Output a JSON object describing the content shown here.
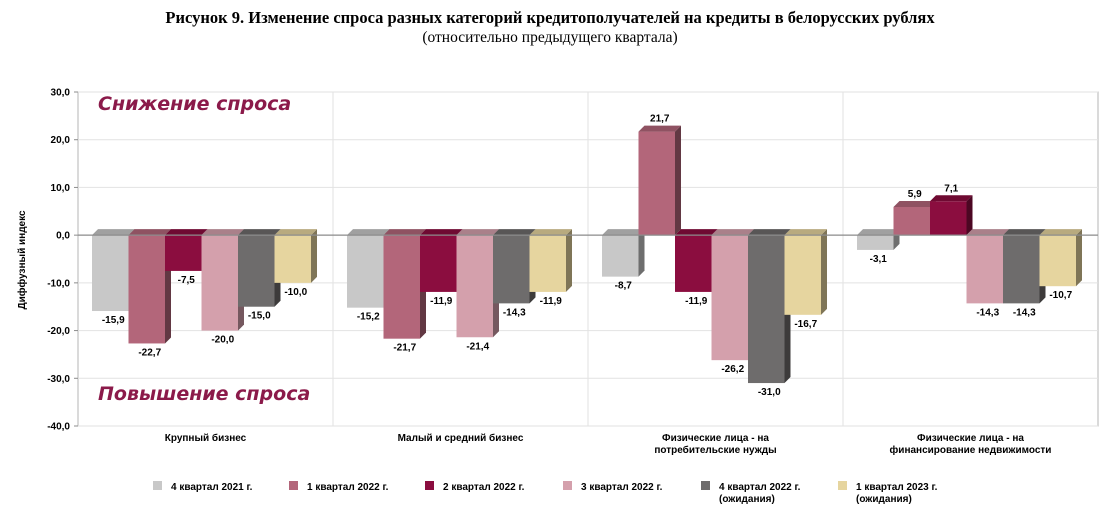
{
  "title": "Рисунок 9. Изменение спроса разных категорий кредитополучателей на кредиты в белорусских рублях",
  "subtitle": "(относительно предыдущего квартала)",
  "chart_data": {
    "type": "bar",
    "ylabel": "Диффузный индекс",
    "ylim": [
      -40,
      30
    ],
    "yticks": [
      "30,0",
      "20,0",
      "10,0",
      "0,0",
      "-10,0",
      "-20,0",
      "-30,0",
      "-40,0"
    ],
    "grid": true,
    "legend_position": "bottom",
    "annotations": [
      "Снижение спроса",
      "Повышение спроса"
    ],
    "categories": [
      [
        "Крупный бизнес"
      ],
      [
        "Малый и средний бизнес"
      ],
      [
        "Физические лица - на",
        "потребительские нужды"
      ],
      [
        "Физические лица - на",
        "финансирование недвижимости"
      ]
    ],
    "series": [
      {
        "name": [
          "4 квартал 2021 г."
        ],
        "color": "#c8c8c8",
        "values": [
          -15.9,
          -15.2,
          -8.7,
          -3.1
        ],
        "labels": [
          "-15,9",
          "-15,2",
          "-8,7",
          "-3,1"
        ]
      },
      {
        "name": [
          "1 квартал 2022 г."
        ],
        "color": "#b3667a",
        "values": [
          -22.7,
          -21.7,
          21.7,
          5.9
        ],
        "labels": [
          "-22,7",
          "-21,7",
          "21,7",
          "5,9"
        ]
      },
      {
        "name": [
          "2 квартал 2022 г."
        ],
        "color": "#8b0d3f",
        "values": [
          -7.5,
          -11.9,
          -11.9,
          7.1
        ],
        "labels": [
          "-7,5",
          "-11,9",
          "-11,9",
          "7,1"
        ]
      },
      {
        "name": [
          "3 квартал 2022 г."
        ],
        "color": "#d4a0ac",
        "values": [
          -20.0,
          -21.4,
          -26.2,
          -14.3
        ],
        "labels": [
          "-20,0",
          "-21,4",
          "-26,2",
          "-14,3"
        ]
      },
      {
        "name": [
          "4 квартал 2022 г.",
          "(ожидания)"
        ],
        "color": "#6e6c6c",
        "values": [
          -15.0,
          -14.3,
          -31.0,
          -14.3
        ],
        "labels": [
          "-15,0",
          "-14,3",
          "-31,0",
          "-14,3"
        ]
      },
      {
        "name": [
          "1 квартал 2023 г.",
          "(ожидания)"
        ],
        "color": "#e6d59f",
        "values": [
          -10.0,
          -11.9,
          -16.7,
          -10.7
        ],
        "labels": [
          "-10,0",
          "-11,9",
          "-16,7",
          "-10,7"
        ]
      }
    ]
  }
}
